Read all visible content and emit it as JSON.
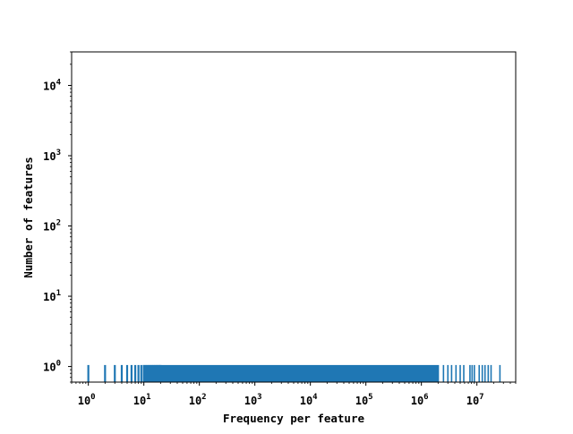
{
  "chart_data": {
    "type": "bar",
    "title": "",
    "xlabel": "Frequency per feature",
    "ylabel": "Number of features",
    "x_scale": "log",
    "y_scale": "log",
    "xlim": [
      0.5,
      50000000
    ],
    "ylim": [
      0.6,
      30000
    ],
    "grid": false,
    "color": "#1f77b4",
    "x_ticks": [
      {
        "base": "10",
        "exp": "0"
      },
      {
        "base": "10",
        "exp": "1"
      },
      {
        "base": "10",
        "exp": "2"
      },
      {
        "base": "10",
        "exp": "3"
      },
      {
        "base": "10",
        "exp": "4"
      },
      {
        "base": "10",
        "exp": "5"
      },
      {
        "base": "10",
        "exp": "6"
      },
      {
        "base": "10",
        "exp": "7"
      }
    ],
    "y_ticks": [
      {
        "base": "10",
        "exp": "0"
      },
      {
        "base": "10",
        "exp": "1"
      },
      {
        "base": "10",
        "exp": "2"
      },
      {
        "base": "10",
        "exp": "3"
      },
      {
        "base": "10",
        "exp": "4"
      }
    ],
    "discrete_bars": {
      "x": [
        1,
        2,
        3,
        4,
        5,
        6,
        7,
        8,
        9,
        10,
        11,
        12,
        13,
        14,
        15,
        16,
        17,
        18,
        19,
        20
      ],
      "value": 1
    },
    "dense_band": {
      "x_range": [
        10,
        2000000
      ],
      "value": 1
    },
    "tail_bars": {
      "x": [
        2500000,
        3000000,
        3500000,
        4200000,
        5000000,
        5800000,
        7500000,
        8200000,
        9000000,
        11000000,
        12500000,
        14000000,
        16000000,
        18000000,
        26000000
      ],
      "value": 1
    }
  }
}
